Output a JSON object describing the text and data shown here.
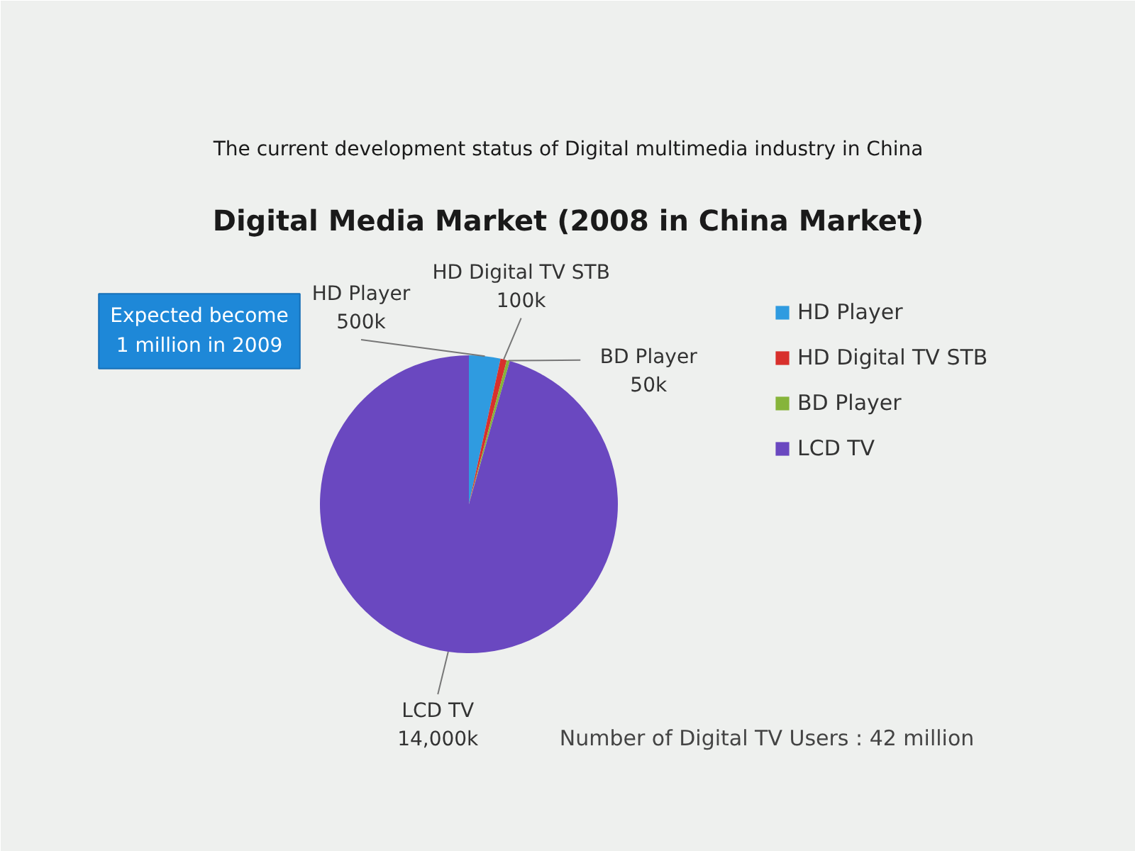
{
  "chart_data": {
    "type": "pie",
    "title": "Digital Media Market (2008 in China Market)",
    "subtitle": "The current development status of Digital multimedia industry in China",
    "categories": [
      "HD Player",
      "HD Digital TV STB",
      "BD Player",
      "LCD TV"
    ],
    "values": [
      500,
      100,
      50,
      14000
    ],
    "value_labels": [
      "500k",
      "100k",
      "50k",
      "14,000k"
    ],
    "colors": [
      "#2f9be0",
      "#d8302c",
      "#86b43a",
      "#6a48c0"
    ],
    "legend": "right",
    "annotations": [
      "Expected become 1 million in 2009",
      "Number of Digital TV Users : 42 million"
    ]
  }
}
